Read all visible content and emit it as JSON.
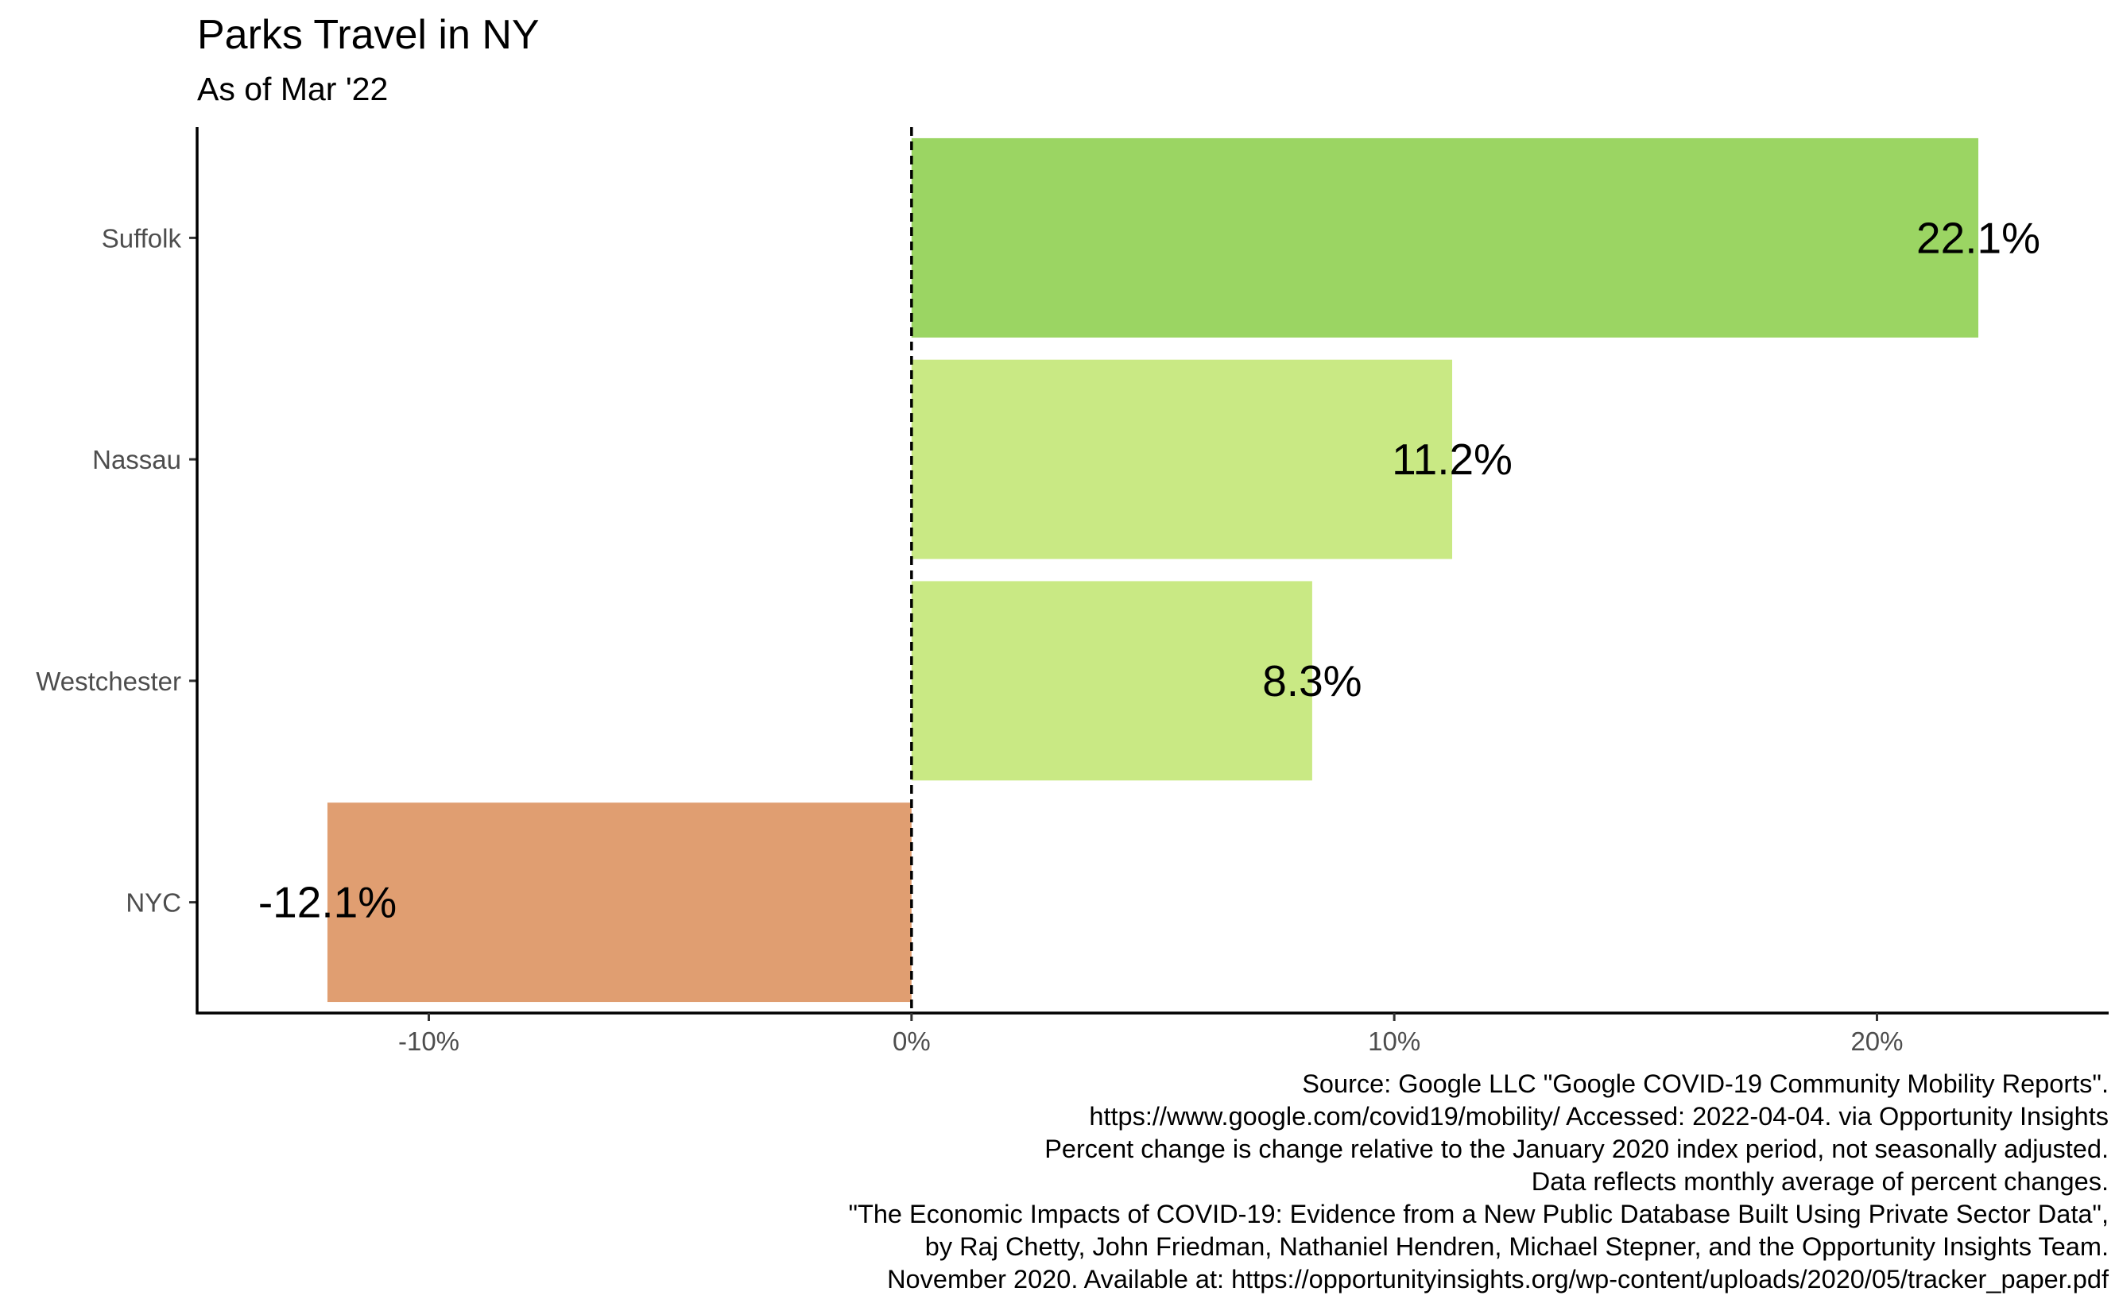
{
  "title": "Parks Travel in NY",
  "subtitle": "As of Mar '22",
  "caption": [
    "Source: Google LLC \"Google COVID-19 Community Mobility Reports\".",
    "https://www.google.com/covid19/mobility/ Accessed: 2022-04-04. via Opportunity Insights",
    "Percent change is change relative to the January 2020 index period, not seasonally adjusted.",
    "Data reflects monthly average of percent changes.",
    "\"The Economic Impacts of COVID-19: Evidence from a New Public Database Built Using Private Sector Data\",",
    "by Raj Chetty, John Friedman, Nathaniel Hendren, Michael Stepner, and the Opportunity Insights Team.",
    "November 2020. Available at: https://opportunityinsights.org/wp-content/uploads/2020/05/tracker_paper.pdf"
  ],
  "chart_data": {
    "type": "bar",
    "orientation": "horizontal",
    "title": "Parks Travel in NY",
    "subtitle": "As of Mar '22",
    "categories": [
      "Suffolk",
      "Nassau",
      "Westchester",
      "NYC"
    ],
    "values": [
      22.1,
      11.2,
      8.3,
      -12.1
    ],
    "data_labels": [
      "22.1%",
      "11.2%",
      "8.3%",
      "-12.1%"
    ],
    "bar_colors": [
      "#9BD563",
      "#C9E984",
      "#C9E984",
      "#E09E71"
    ],
    "xlim": [
      -14.8,
      24.8
    ],
    "xticks": [
      -10,
      0,
      10,
      20
    ],
    "xtick_labels": [
      "-10%",
      "0%",
      "10%",
      "20%"
    ],
    "reference_line": {
      "x": 0,
      "style": "dashed"
    },
    "xlabel": "",
    "ylabel": "",
    "grid": false,
    "legend": "none"
  }
}
